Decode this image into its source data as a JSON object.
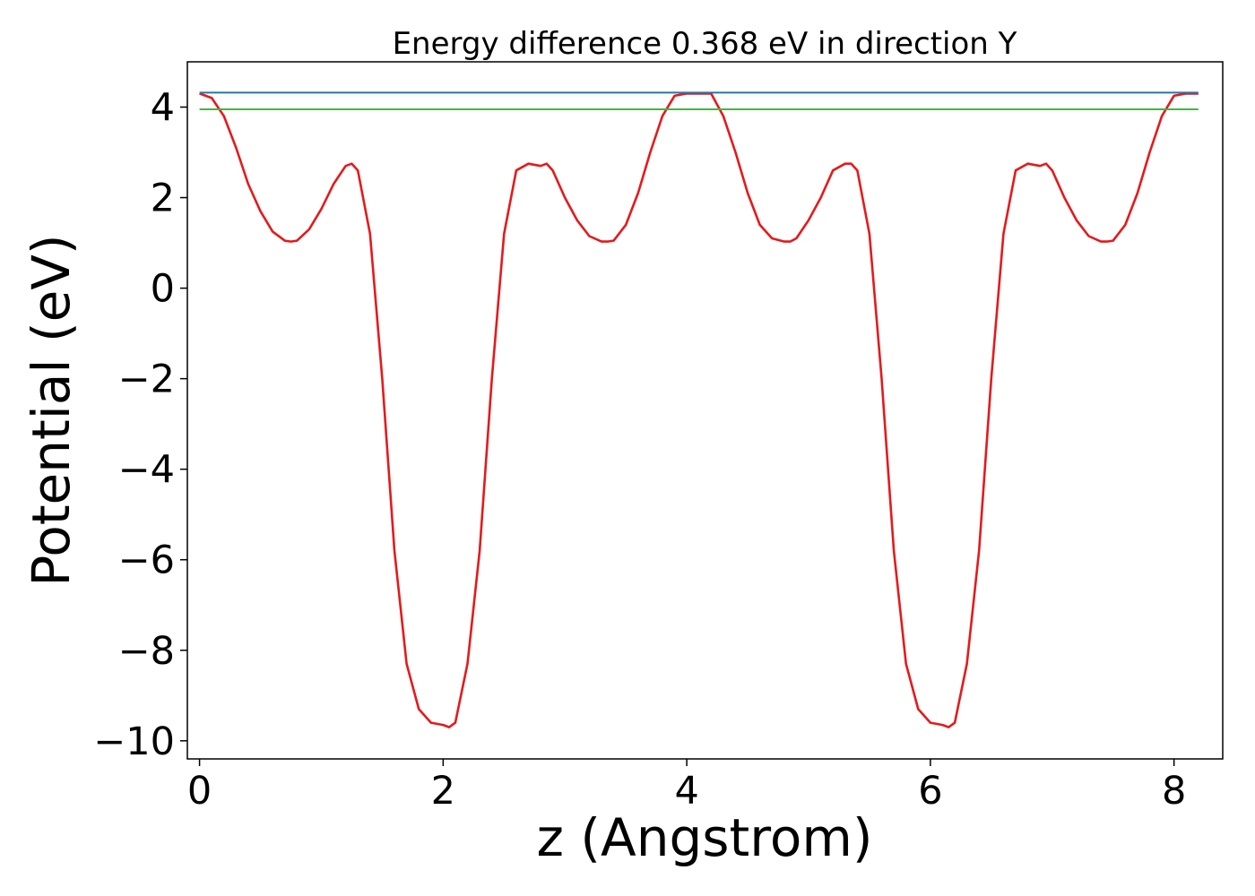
{
  "chart_data": {
    "type": "line",
    "title": "Energy difference 0.368 eV in direction Y",
    "xlabel": "z (Angstrom)",
    "ylabel": "Potential (eV)",
    "xlim": [
      -0.1,
      8.4
    ],
    "ylim": [
      -10.4,
      5.0
    ],
    "xticks": [
      0,
      2,
      4,
      6,
      8
    ],
    "xtick_labels": [
      "0",
      "2",
      "4",
      "6",
      "8"
    ],
    "yticks": [
      4,
      2,
      0,
      -2,
      -4,
      -6,
      -8,
      -10
    ],
    "ytick_labels": [
      "4",
      "2",
      "0",
      "−2",
      "−4",
      "−6",
      "−8",
      "−10"
    ],
    "grid": false,
    "legend": "none",
    "series": [
      {
        "color": "#e41a1c",
        "x": [
          0.0,
          0.1,
          0.2,
          0.3,
          0.4,
          0.5,
          0.6,
          0.7,
          0.75,
          0.8,
          0.9,
          1.0,
          1.1,
          1.2,
          1.25,
          1.3,
          1.4,
          1.5,
          1.6,
          1.7,
          1.8,
          1.9,
          2.0,
          2.05,
          2.1,
          2.2,
          2.3,
          2.4,
          2.5,
          2.6,
          2.7,
          2.8,
          2.85,
          2.9,
          3.0,
          3.1,
          3.2,
          3.3,
          3.35,
          3.4,
          3.5,
          3.6,
          3.7,
          3.8,
          3.9,
          4.0,
          4.1,
          4.2,
          4.3,
          4.4,
          4.5,
          4.6,
          4.7,
          4.8,
          4.85,
          4.9,
          5.0,
          5.1,
          5.2,
          5.3,
          5.35,
          5.4,
          5.5,
          5.6,
          5.7,
          5.8,
          5.9,
          6.0,
          6.1,
          6.15,
          6.2,
          6.3,
          6.4,
          6.5,
          6.6,
          6.7,
          6.8,
          6.9,
          6.95,
          7.0,
          7.1,
          7.2,
          7.3,
          7.4,
          7.45,
          7.5,
          7.6,
          7.7,
          7.8,
          7.9,
          8.0,
          8.1,
          8.2
        ],
        "y": [
          4.3,
          4.2,
          3.8,
          3.1,
          2.3,
          1.7,
          1.25,
          1.05,
          1.03,
          1.05,
          1.3,
          1.75,
          2.3,
          2.7,
          2.75,
          2.6,
          1.2,
          -2.0,
          -5.8,
          -8.3,
          -9.3,
          -9.6,
          -9.65,
          -9.7,
          -9.6,
          -8.3,
          -5.8,
          -2.0,
          1.2,
          2.6,
          2.75,
          2.7,
          2.75,
          2.6,
          2.0,
          1.5,
          1.15,
          1.03,
          1.03,
          1.05,
          1.4,
          2.1,
          3.0,
          3.8,
          4.25,
          4.3,
          4.3,
          4.3,
          3.8,
          3.0,
          2.1,
          1.4,
          1.1,
          1.03,
          1.03,
          1.1,
          1.5,
          2.0,
          2.6,
          2.75,
          2.75,
          2.6,
          1.2,
          -2.0,
          -5.8,
          -8.3,
          -9.3,
          -9.6,
          -9.65,
          -9.7,
          -9.6,
          -8.3,
          -5.8,
          -2.0,
          1.2,
          2.6,
          2.75,
          2.7,
          2.75,
          2.6,
          2.0,
          1.5,
          1.15,
          1.03,
          1.03,
          1.05,
          1.4,
          2.1,
          3.0,
          3.8,
          4.25,
          4.3,
          4.3
        ]
      },
      {
        "color": "#1f77b4",
        "x": [
          0.0,
          8.2
        ],
        "y": [
          4.32,
          4.32
        ]
      },
      {
        "color": "#4daf4a",
        "x": [
          0.0,
          8.2
        ],
        "y": [
          3.95,
          3.95
        ]
      }
    ]
  }
}
